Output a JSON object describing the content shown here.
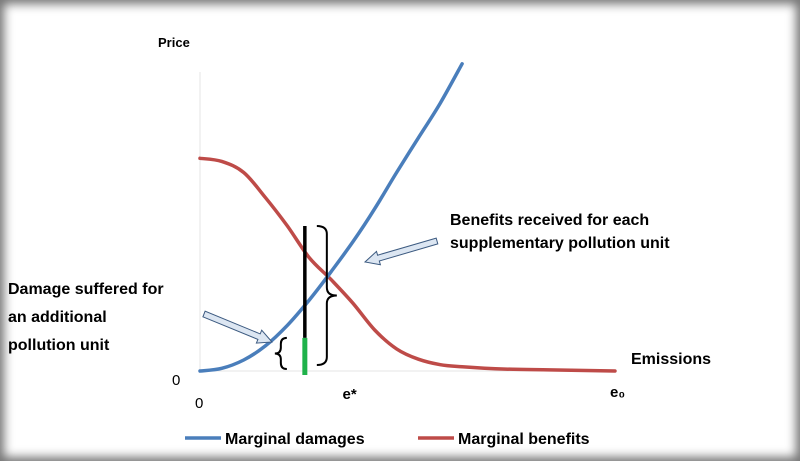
{
  "chart_data": {
    "type": "line",
    "ylabel": "Price",
    "xlabel": "Emissions",
    "y_origin_label": "0",
    "x_origin_label": "0",
    "x_ticks": [
      "e*",
      "e₀"
    ],
    "series": [
      {
        "name": "Marginal damages",
        "color": "#4a7ebb",
        "points": [
          [
            0,
            0
          ],
          [
            0.5,
            0.17
          ],
          [
            1,
            0.7
          ],
          [
            1.5,
            1.6
          ],
          [
            2,
            2.9
          ],
          [
            2.5,
            4.5
          ],
          [
            3,
            6.3
          ],
          [
            3.5,
            8.2
          ],
          [
            4,
            10.3
          ],
          [
            4.5,
            12.6
          ],
          [
            5,
            14.8
          ],
          [
            5.5,
            17.0
          ],
          [
            6,
            19.5
          ]
        ]
      },
      {
        "name": "Marginal benefits",
        "color": "#be4b48",
        "points": [
          [
            0,
            13.5
          ],
          [
            0.5,
            13.3
          ],
          [
            1,
            12.6
          ],
          [
            1.5,
            11.0
          ],
          [
            2,
            9.2
          ],
          [
            2.5,
            7.2
          ],
          [
            3,
            5.8
          ],
          [
            3.5,
            4.3
          ],
          [
            4,
            2.6
          ],
          [
            4.5,
            1.4
          ],
          [
            5,
            0.75
          ],
          [
            5.5,
            0.4
          ],
          [
            6,
            0.27
          ],
          [
            7,
            0.12
          ],
          [
            8,
            0.07
          ],
          [
            9.5,
            0
          ]
        ]
      }
    ],
    "xlim": [
      0,
      9.5
    ],
    "ylim": [
      0,
      20.5
    ],
    "markers": {
      "e_star": 3.4,
      "e0": 9.5,
      "unit_x": 2.4,
      "unit_top": 9.2,
      "damage_top": 2.1
    },
    "annotations": {
      "benefits": [
        "Benefits received for each",
        "supplementary pollution unit"
      ],
      "damage": [
        "Damage suffered for",
        "an additional",
        "pollution unit"
      ]
    },
    "colors": {
      "unit_line": "#000000",
      "damage_segment": "#1fb24a",
      "arrow_fill": "#dce6f2",
      "arrow_stroke": "#3c5a80"
    },
    "axes_visible": false,
    "legend_placement": "bottom"
  }
}
